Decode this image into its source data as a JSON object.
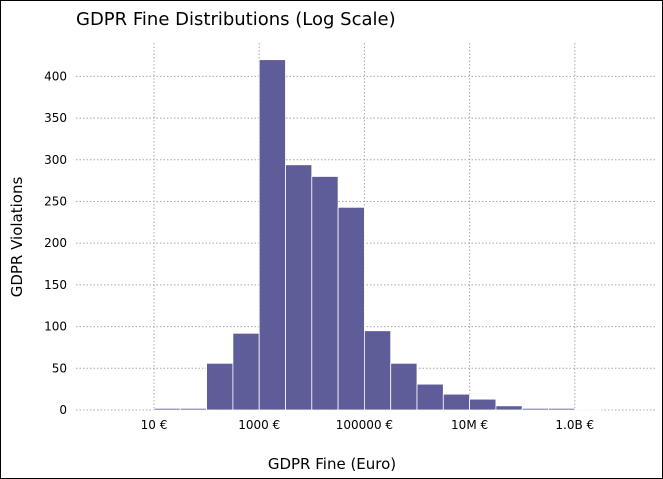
{
  "chart_data": {
    "type": "bar",
    "title": "GDPR Fine Distributions (Log Scale)",
    "xlabel": "GDPR Fine (Euro)",
    "ylabel": "GDPR Violations",
    "x_scale": "log10",
    "x_ticks": [
      {
        "value": 10,
        "label": "10 €"
      },
      {
        "value": 1000,
        "label": "1000 €"
      },
      {
        "value": 100000,
        "label": "100000 €"
      },
      {
        "value": 10000000,
        "label": "10M €"
      },
      {
        "value": 1000000000,
        "label": "1.0B €"
      }
    ],
    "xlim": [
      0.1,
      10000000000
    ],
    "ylim": [
      0,
      440
    ],
    "y_ticks": [
      0,
      50,
      100,
      150,
      200,
      250,
      300,
      350,
      400
    ],
    "grid": true,
    "bar_color": "#5e5c99",
    "bins": [
      {
        "from": 10,
        "to": 31.6,
        "count": 2
      },
      {
        "from": 31.6,
        "to": 100,
        "count": 2
      },
      {
        "from": 100,
        "to": 316,
        "count": 56
      },
      {
        "from": 316,
        "to": 1000,
        "count": 92
      },
      {
        "from": 1000,
        "to": 3162,
        "count": 420
      },
      {
        "from": 3162,
        "to": 10000,
        "count": 294
      },
      {
        "from": 10000,
        "to": 31623,
        "count": 280
      },
      {
        "from": 31623,
        "to": 100000,
        "count": 243
      },
      {
        "from": 100000,
        "to": 316228,
        "count": 95
      },
      {
        "from": 316228,
        "to": 1000000,
        "count": 56
      },
      {
        "from": 1000000,
        "to": 3162278,
        "count": 31
      },
      {
        "from": 3162278,
        "to": 10000000,
        "count": 19
      },
      {
        "from": 10000000,
        "to": 31622777,
        "count": 13
      },
      {
        "from": 31622777,
        "to": 100000000,
        "count": 5
      },
      {
        "from": 100000000,
        "to": 316227766,
        "count": 2
      },
      {
        "from": 316227766,
        "to": 1000000000,
        "count": 2
      },
      {
        "from": 1000000000,
        "to": 3162277660,
        "count": 1
      }
    ]
  }
}
